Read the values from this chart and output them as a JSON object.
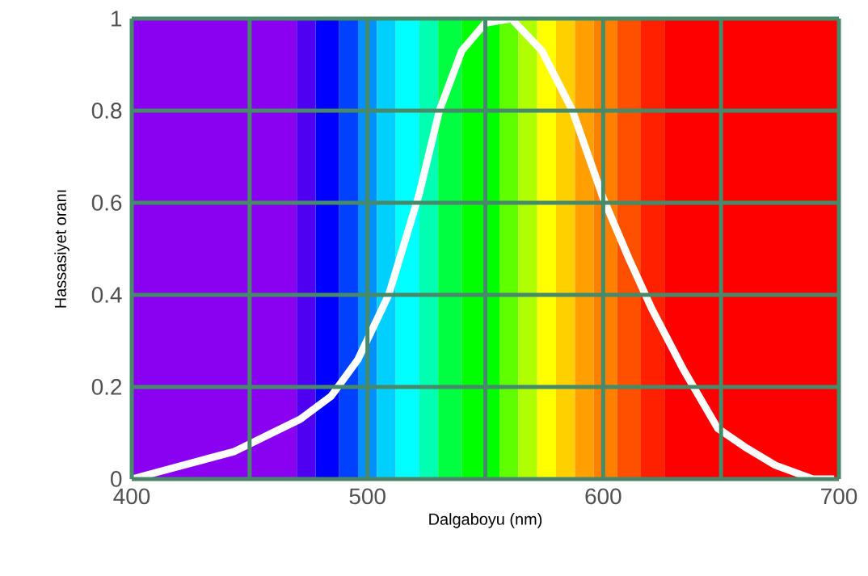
{
  "chart_data": {
    "type": "line",
    "xlabel": "Dalgaboyu (nm)",
    "ylabel": "Hassasiyet oranı",
    "x": [
      400,
      443.6,
      471.5,
      484.6,
      496,
      509,
      522,
      530.5,
      540,
      550,
      561,
      574,
      587,
      600,
      610.8,
      620.6,
      633.8,
      648.6,
      660,
      673,
      689,
      698
    ],
    "series": [
      {
        "color": "#ffffff",
        "values": [
          0,
          0.06,
          0.13,
          0.18,
          0.26,
          0.4,
          0.62,
          0.8,
          0.93,
          0.99,
          1.0,
          0.93,
          0.8,
          0.61,
          0.48,
          0.37,
          0.24,
          0.11,
          0.07,
          0.03,
          0.0,
          0.0
        ]
      }
    ],
    "xlim": [
      400,
      700
    ],
    "ylim": [
      0,
      1
    ],
    "xticks": [
      400,
      {
        "value": 450,
        "label": null
      },
      500,
      {
        "value": 550,
        "label": null
      },
      600,
      {
        "value": 650,
        "label": null
      },
      700
    ],
    "yticks": [
      0,
      0.2,
      0.4,
      0.6,
      0.8,
      1
    ],
    "grid": true,
    "line_style": "solid",
    "marker": "none",
    "bands": [
      {
        "axis": "x",
        "from": 400,
        "to": 470,
        "color": "#8a00f0"
      },
      {
        "axis": "x",
        "from": 470,
        "to": 478,
        "color": "#5000f0"
      },
      {
        "axis": "x",
        "from": 478,
        "to": 488,
        "color": "#0000ff"
      },
      {
        "axis": "x",
        "from": 488,
        "to": 496,
        "color": "#0040ff"
      },
      {
        "axis": "x",
        "from": 496,
        "to": 504,
        "color": "#0090ff"
      },
      {
        "axis": "x",
        "from": 504,
        "to": 512,
        "color": "#00d0ff"
      },
      {
        "axis": "x",
        "from": 512,
        "to": 522,
        "color": "#00ffff"
      },
      {
        "axis": "x",
        "from": 522,
        "to": 530,
        "color": "#00ffb0"
      },
      {
        "axis": "x",
        "from": 530,
        "to": 540,
        "color": "#00ff40"
      },
      {
        "axis": "x",
        "from": 540,
        "to": 556,
        "color": "#00ff00"
      },
      {
        "axis": "x",
        "from": 556,
        "to": 564,
        "color": "#60ff00"
      },
      {
        "axis": "x",
        "from": 564,
        "to": 572,
        "color": "#b0ff00"
      },
      {
        "axis": "x",
        "from": 572,
        "to": 580,
        "color": "#ffff00"
      },
      {
        "axis": "x",
        "from": 580,
        "to": 588,
        "color": "#ffd000"
      },
      {
        "axis": "x",
        "from": 588,
        "to": 596,
        "color": "#ffa000"
      },
      {
        "axis": "x",
        "from": 596,
        "to": 606,
        "color": "#ff8000"
      },
      {
        "axis": "x",
        "from": 606,
        "to": 616,
        "color": "#ff5000"
      },
      {
        "axis": "x",
        "from": 616,
        "to": 626,
        "color": "#ff2000"
      },
      {
        "axis": "x",
        "from": 626,
        "to": 700,
        "color": "#ff0000"
      }
    ]
  }
}
